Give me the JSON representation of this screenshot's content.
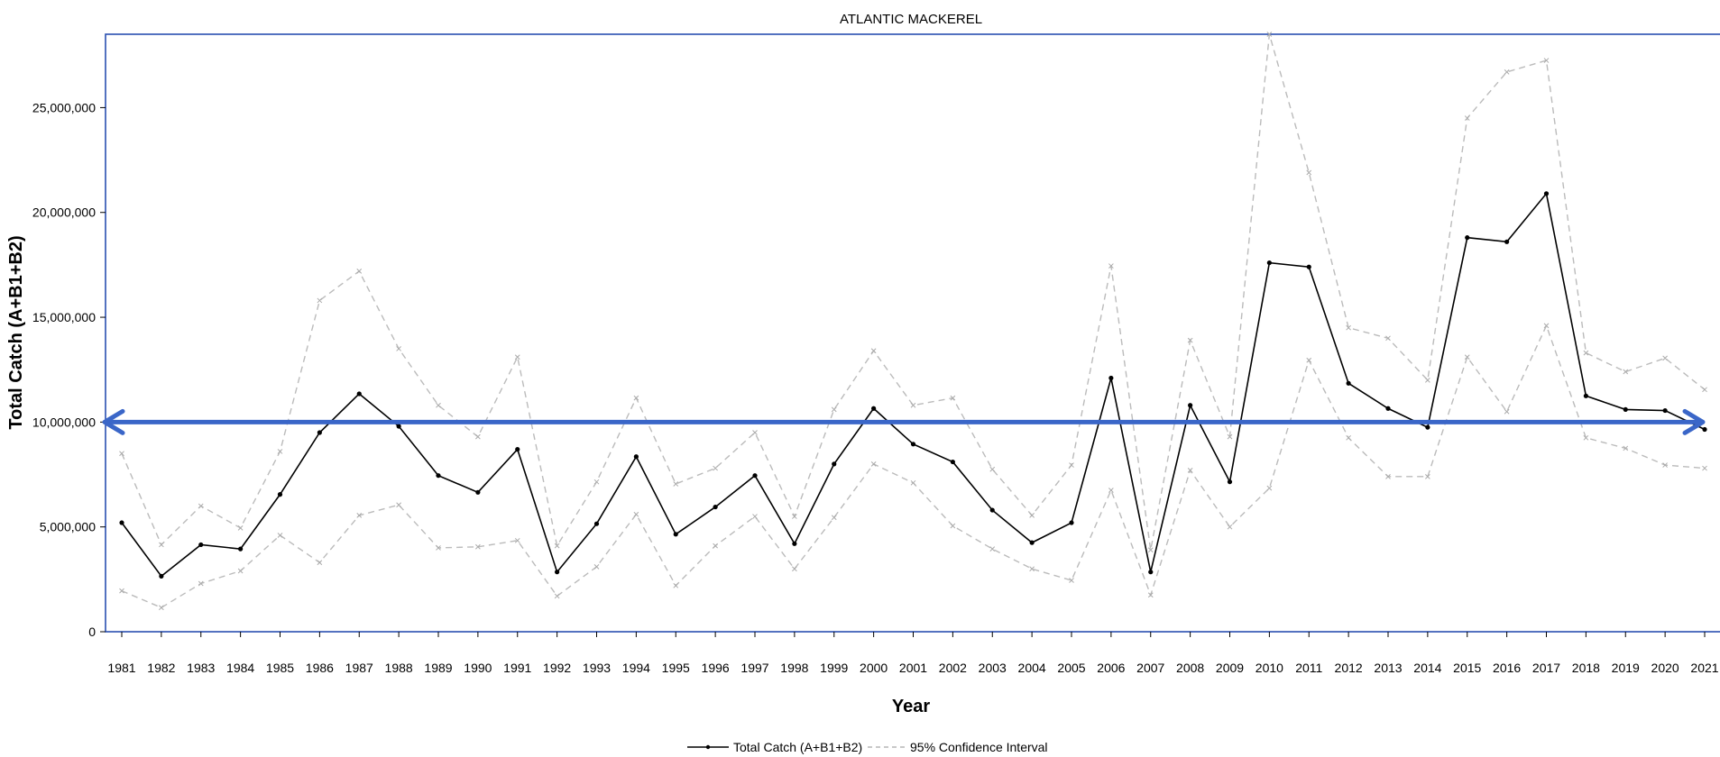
{
  "chart_data": {
    "type": "line",
    "title": "ATLANTIC MACKEREL",
    "xlabel": "Year",
    "ylabel": "Total Catch (A+B1+B2)",
    "xlim": [
      1981,
      2021
    ],
    "ylim": [
      0,
      28500000
    ],
    "yticks": [
      0,
      5000000,
      10000000,
      15000000,
      20000000,
      25000000
    ],
    "ytick_labels": [
      "0",
      "5,000,000",
      "10,000,000",
      "15,000,000",
      "20,000,000",
      "25,000,000"
    ],
    "categories": [
      "1981",
      "1982",
      "1983",
      "1984",
      "1985",
      "1986",
      "1987",
      "1988",
      "1989",
      "1990",
      "1991",
      "1992",
      "1993",
      "1994",
      "1995",
      "1996",
      "1997",
      "1998",
      "1999",
      "2000",
      "2001",
      "2002",
      "2003",
      "2004",
      "2005",
      "2006",
      "2007",
      "2008",
      "2009",
      "2010",
      "2011",
      "2012",
      "2013",
      "2014",
      "2015",
      "2016",
      "2017",
      "2018",
      "2019",
      "2020",
      "2021"
    ],
    "series": [
      {
        "name": "Total Catch (A+B1+B2)",
        "color": "#000000",
        "style": "solid",
        "values": [
          5200000,
          2650000,
          4150000,
          3950000,
          6550000,
          9500000,
          11350000,
          9800000,
          7450000,
          6650000,
          8700000,
          2850000,
          5150000,
          8350000,
          4650000,
          5950000,
          7450000,
          4200000,
          8000000,
          10650000,
          8950000,
          8100000,
          5800000,
          4250000,
          5200000,
          12100000,
          2850000,
          10800000,
          7150000,
          17600000,
          17400000,
          11850000,
          10650000,
          9750000,
          18800000,
          18600000,
          20900000,
          11250000,
          10600000,
          10550000,
          9650000
        ]
      },
      {
        "name": "95% Confidence Interval",
        "color": "#bbbbbb",
        "style": "dashed",
        "upper": [
          8500000,
          4150000,
          6000000,
          4950000,
          8600000,
          15800000,
          17200000,
          13500000,
          10800000,
          9300000,
          13100000,
          4100000,
          7150000,
          11150000,
          7050000,
          7800000,
          9500000,
          5500000,
          10600000,
          13400000,
          10800000,
          11150000,
          7750000,
          5550000,
          7950000,
          17450000,
          3900000,
          13900000,
          9300000,
          28500000,
          21900000,
          14500000,
          14000000,
          12000000,
          24500000,
          26700000,
          27250000,
          13300000,
          12400000,
          13050000,
          11550000
        ],
        "lower": [
          1950000,
          1150000,
          2300000,
          2900000,
          4600000,
          3300000,
          5550000,
          6050000,
          4000000,
          4050000,
          4350000,
          1700000,
          3100000,
          5600000,
          2200000,
          4100000,
          5500000,
          3000000,
          5450000,
          8000000,
          7100000,
          5050000,
          3950000,
          3000000,
          2450000,
          6750000,
          1750000,
          7700000,
          5000000,
          6850000,
          12950000,
          9250000,
          7400000,
          7400000,
          13100000,
          10500000,
          14600000,
          9250000,
          8750000,
          7950000,
          7800000
        ]
      }
    ],
    "reference_line": {
      "y": 10000000,
      "color": "#3a66c8",
      "arrows": "both"
    },
    "grid": false,
    "legend_position": "bottom-center"
  }
}
